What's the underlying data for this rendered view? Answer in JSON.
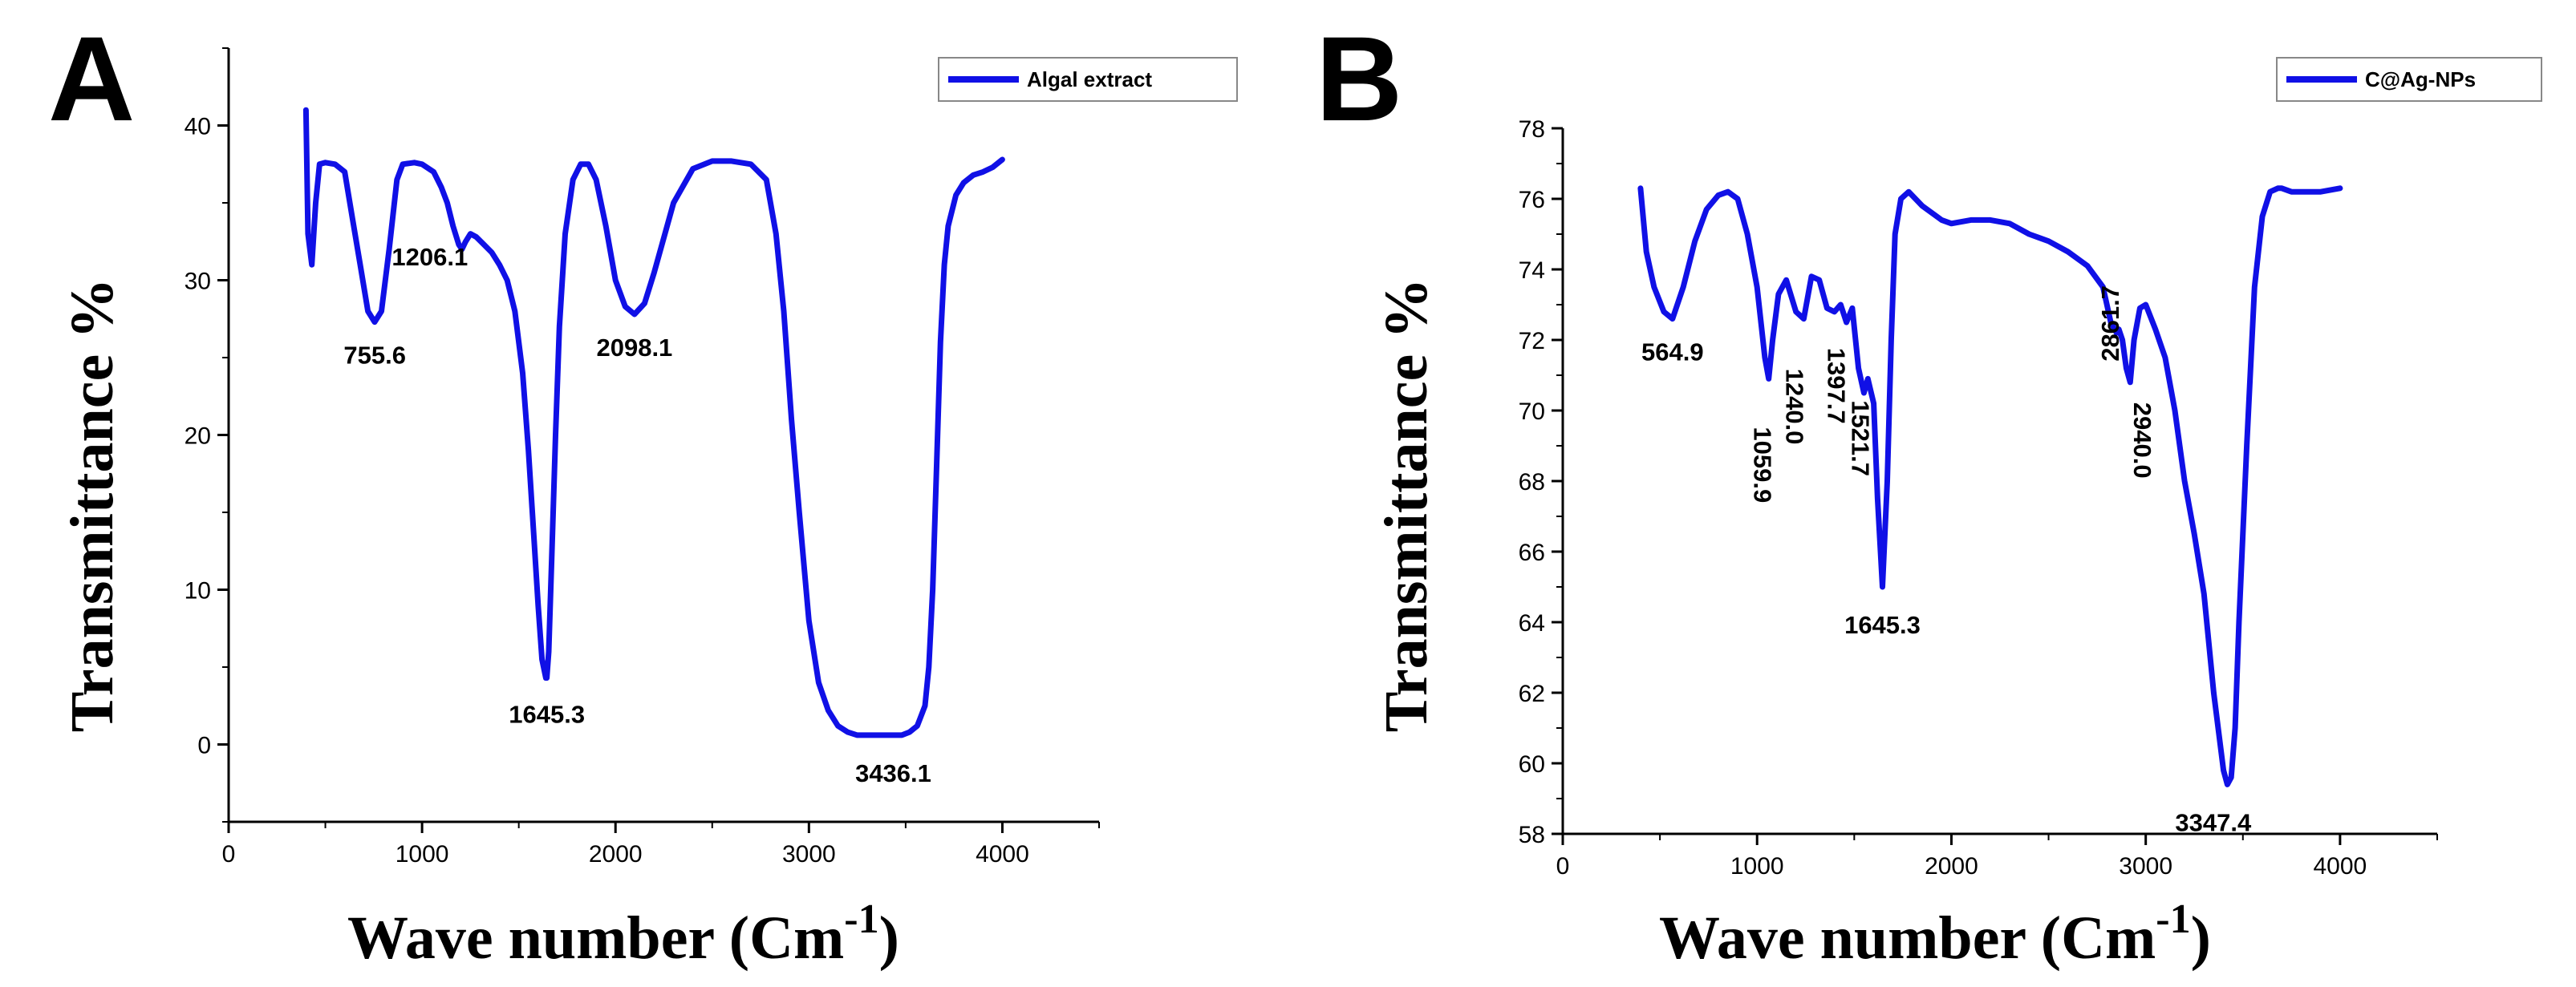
{
  "colors": {
    "series": "#1010e6",
    "axis": "#000000"
  },
  "chart_data": [
    {
      "type": "line",
      "panel_label": "A",
      "legend": "Algal extract",
      "xlabel": "Wave number (Cm",
      "xlabel_sup": "-1",
      "xlabel_close": ")",
      "ylabel": "Transmittance %",
      "xlim": [
        0,
        4500
      ],
      "ylim": [
        -5,
        45
      ],
      "xticks": [
        0,
        1000,
        2000,
        3000,
        4000
      ],
      "yticks": [
        0,
        10,
        20,
        30,
        40
      ],
      "x": [
        400,
        410,
        430,
        450,
        470,
        500,
        550,
        600,
        640,
        680,
        720,
        755,
        790,
        830,
        870,
        900,
        960,
        1000,
        1060,
        1100,
        1130,
        1160,
        1190,
        1206,
        1225,
        1250,
        1280,
        1320,
        1360,
        1400,
        1440,
        1480,
        1520,
        1550,
        1580,
        1600,
        1620,
        1640,
        1645,
        1655,
        1670,
        1690,
        1710,
        1740,
        1780,
        1820,
        1860,
        1900,
        1950,
        2000,
        2050,
        2098,
        2150,
        2200,
        2300,
        2400,
        2500,
        2600,
        2700,
        2780,
        2830,
        2870,
        2910,
        2950,
        3000,
        3050,
        3100,
        3150,
        3200,
        3250,
        3300,
        3350,
        3400,
        3436,
        3480,
        3520,
        3560,
        3600,
        3620,
        3640,
        3660,
        3680,
        3700,
        3720,
        3760,
        3800,
        3850,
        3900,
        3950,
        4000
      ],
      "y": [
        41.0,
        33.0,
        31.0,
        35.0,
        37.5,
        37.6,
        37.5,
        37.0,
        34.0,
        31.0,
        28.0,
        27.3,
        28.0,
        32.0,
        36.5,
        37.5,
        37.6,
        37.5,
        37.0,
        36.0,
        35.0,
        33.5,
        32.3,
        32.0,
        32.5,
        33.0,
        32.8,
        32.3,
        31.8,
        31.0,
        30.0,
        28.0,
        24.0,
        19.0,
        13.0,
        9.0,
        5.5,
        4.3,
        4.3,
        6.0,
        12.0,
        20.0,
        27.0,
        33.0,
        36.5,
        37.5,
        37.5,
        36.5,
        33.5,
        30.0,
        28.3,
        27.8,
        28.5,
        30.5,
        35.0,
        37.2,
        37.7,
        37.7,
        37.5,
        36.5,
        33.0,
        28.0,
        21.0,
        15.0,
        8.0,
        4.0,
        2.2,
        1.2,
        0.8,
        0.6,
        0.6,
        0.6,
        0.6,
        0.6,
        0.6,
        0.8,
        1.2,
        2.5,
        5.0,
        10.0,
        18.0,
        26.0,
        31.0,
        33.5,
        35.5,
        36.3,
        36.8,
        37.0,
        37.3,
        37.8
      ],
      "annotations": [
        {
          "text": "755.6",
          "x": 755.6,
          "y": 27.3,
          "rotate": 0
        },
        {
          "text": "1206.1",
          "x": 1206.1,
          "y": 32.0,
          "rotate": 0
        },
        {
          "text": "1645.3",
          "x": 1645.3,
          "y": 4.3,
          "rotate": 0
        },
        {
          "text": "2098.1",
          "x": 2098.1,
          "y": 27.8,
          "rotate": 0
        },
        {
          "text": "3436.1",
          "x": 3436.1,
          "y": 0.6,
          "rotate": 0
        }
      ]
    },
    {
      "type": "line",
      "panel_label": "B",
      "legend": "C@Ag-NPs",
      "xlabel": "Wave number (Cm",
      "xlabel_sup": "-1",
      "xlabel_close": ")",
      "ylabel": "Transmittance %",
      "xlim": [
        0,
        4500
      ],
      "ylim": [
        58,
        78
      ],
      "xticks": [
        0,
        1000,
        2000,
        3000,
        4000
      ],
      "yticks": [
        58,
        60,
        62,
        64,
        66,
        68,
        70,
        72,
        74,
        76,
        78
      ],
      "x": [
        400,
        430,
        470,
        520,
        564.9,
        620,
        680,
        740,
        800,
        850,
        900,
        950,
        1000,
        1040,
        1059.9,
        1080,
        1110,
        1150,
        1200,
        1240,
        1280,
        1320,
        1360,
        1397.7,
        1430,
        1460,
        1490,
        1521.7,
        1550,
        1570,
        1600,
        1620,
        1645.3,
        1670,
        1690,
        1710,
        1740,
        1780,
        1850,
        1950,
        2000,
        2100,
        2200,
        2300,
        2400,
        2500,
        2600,
        2700,
        2780,
        2820,
        2850,
        2861.7,
        2880,
        2900,
        2920,
        2940,
        2970,
        3000,
        3050,
        3100,
        3150,
        3200,
        3250,
        3300,
        3350,
        3400,
        3420,
        3440,
        3460,
        3480,
        3520,
        3560,
        3600,
        3640,
        3680,
        3700,
        3750,
        3800,
        3900,
        4000
      ],
      "y": [
        76.3,
        74.5,
        73.5,
        72.8,
        72.6,
        73.5,
        74.8,
        75.7,
        76.1,
        76.2,
        76.0,
        75.0,
        73.5,
        71.5,
        70.9,
        72.0,
        73.3,
        73.7,
        72.8,
        72.6,
        73.8,
        73.7,
        72.9,
        72.8,
        73.0,
        72.5,
        72.9,
        71.2,
        70.5,
        70.9,
        70.2,
        67.5,
        65.0,
        68.0,
        72.0,
        75.0,
        76.0,
        76.2,
        75.8,
        75.4,
        75.3,
        75.4,
        75.4,
        75.3,
        75.0,
        74.8,
        74.5,
        74.1,
        73.5,
        72.5,
        72.2,
        72.3,
        72.0,
        71.2,
        70.8,
        72.0,
        72.9,
        73.0,
        72.3,
        71.5,
        70.0,
        68.0,
        66.5,
        64.8,
        62.0,
        59.8,
        59.4,
        59.6,
        61.0,
        64.0,
        69.0,
        73.5,
        75.5,
        76.2,
        76.3,
        76.3,
        76.2,
        76.2,
        76.2,
        76.3
      ],
      "annotations": [
        {
          "text": "564.9",
          "x": 564.9,
          "y": 72.6,
          "rotate": 0
        },
        {
          "text": "1059.9",
          "x": 1059.9,
          "y": 70.9,
          "rotate": 90
        },
        {
          "text": "1240.0",
          "x": 1240.0,
          "y": 72.6,
          "rotate": 90
        },
        {
          "text": "1397.7",
          "x": 1397.7,
          "y": 72.8,
          "rotate": 90
        },
        {
          "text": "1521.7",
          "x": 1521.7,
          "y": 71.2,
          "rotate": 90
        },
        {
          "text": "1645.3",
          "x": 1645.3,
          "y": 65.0,
          "rotate": 0
        },
        {
          "text": "2861.7",
          "x": 2861.7,
          "y": 72.3,
          "rotate": -90
        },
        {
          "text": "2940.0",
          "x": 2940.0,
          "y": 70.8,
          "rotate": 90
        },
        {
          "text": "3347.4",
          "x": 3347.4,
          "y": 59.4,
          "rotate": 0
        }
      ]
    }
  ]
}
